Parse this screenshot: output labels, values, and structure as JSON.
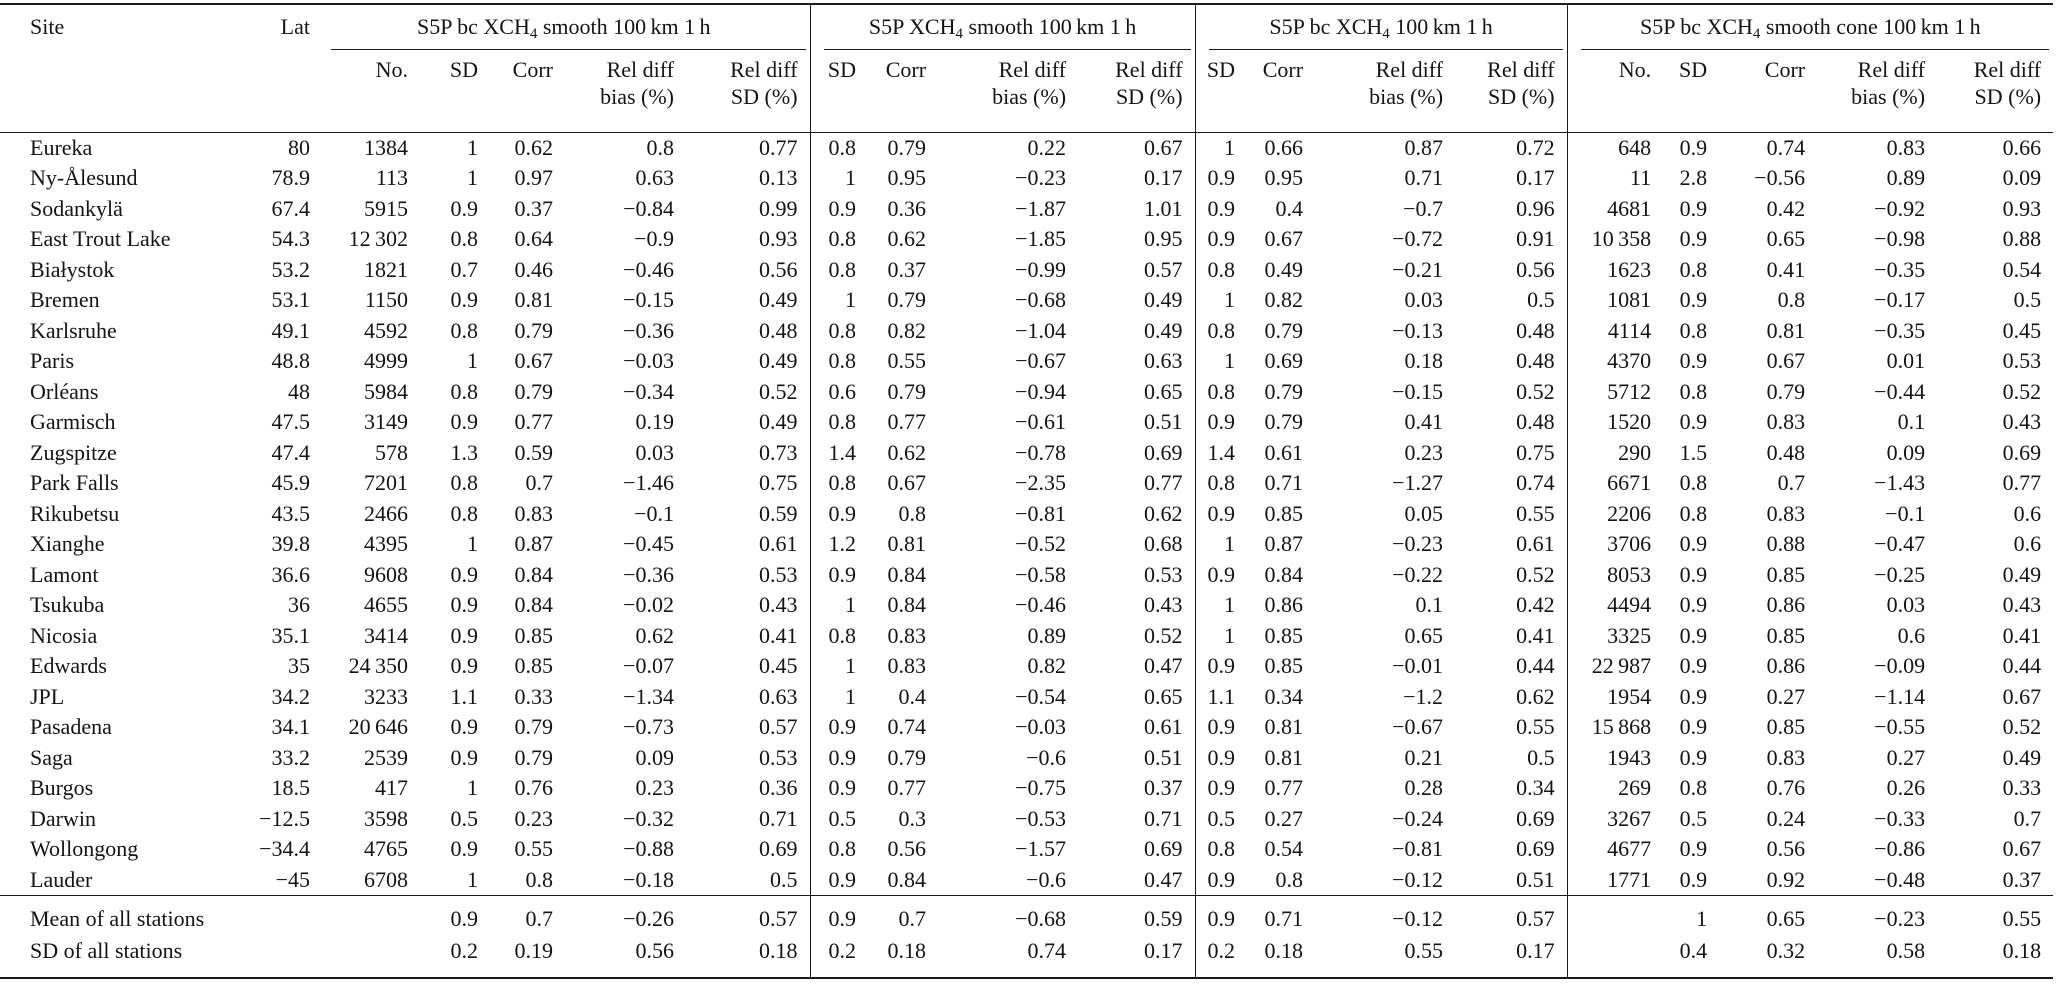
{
  "page": {
    "background_color": "#ffffff",
    "text_color": "#141414",
    "rule_color": "#1a1a1a"
  },
  "table": {
    "site_header": "Site",
    "lat_header": "Lat",
    "groups": [
      {
        "title_pre": "S5P bc XCH",
        "title_sub": "4",
        "title_post": " smooth 100 km 1 h",
        "columns": [
          {
            "key": "no",
            "l1": "No.",
            "l2": ""
          },
          {
            "key": "sd",
            "l1": "SD",
            "l2": ""
          },
          {
            "key": "corr",
            "l1": "Corr",
            "l2": ""
          },
          {
            "key": "rdb",
            "l1": "Rel diff",
            "l2": "bias (%)"
          },
          {
            "key": "rds",
            "l1": "Rel diff",
            "l2": "SD (%)"
          }
        ]
      },
      {
        "title_pre": "S5P XCH",
        "title_sub": "4",
        "title_post": " smooth 100 km 1 h",
        "columns": [
          {
            "key": "sd",
            "l1": "SD",
            "l2": ""
          },
          {
            "key": "corr",
            "l1": "Corr",
            "l2": ""
          },
          {
            "key": "rdb",
            "l1": "Rel diff",
            "l2": "bias (%)"
          },
          {
            "key": "rds",
            "l1": "Rel diff",
            "l2": "SD (%)"
          }
        ]
      },
      {
        "title_pre": "S5P bc XCH",
        "title_sub": "4",
        "title_post": " 100 km 1 h",
        "columns": [
          {
            "key": "sd",
            "l1": "SD",
            "l2": ""
          },
          {
            "key": "corr",
            "l1": "Corr",
            "l2": ""
          },
          {
            "key": "rdb",
            "l1": "Rel diff",
            "l2": "bias (%)"
          },
          {
            "key": "rds",
            "l1": "Rel diff",
            "l2": "SD (%)"
          }
        ]
      },
      {
        "title_pre": "S5P bc XCH",
        "title_sub": "4",
        "title_post": " smooth cone 100 km 1 h",
        "columns": [
          {
            "key": "no",
            "l1": "No.",
            "l2": ""
          },
          {
            "key": "sd",
            "l1": "SD",
            "l2": ""
          },
          {
            "key": "corr",
            "l1": "Corr",
            "l2": ""
          },
          {
            "key": "rdb",
            "l1": "Rel diff",
            "l2": "bias (%)"
          },
          {
            "key": "rds",
            "l1": "Rel diff",
            "l2": "SD (%)"
          }
        ]
      }
    ],
    "rows": [
      {
        "site": "Eureka",
        "lat": "80",
        "g": [
          [
            "1384",
            "1",
            "0.62",
            "0.8",
            "0.77"
          ],
          [
            "0.8",
            "0.79",
            "0.22",
            "0.67"
          ],
          [
            "1",
            "0.66",
            "0.87",
            "0.72"
          ],
          [
            "648",
            "0.9",
            "0.74",
            "0.83",
            "0.66"
          ]
        ]
      },
      {
        "site": "Ny-Ålesund",
        "lat": "78.9",
        "g": [
          [
            "113",
            "1",
            "0.97",
            "0.63",
            "0.13"
          ],
          [
            "1",
            "0.95",
            "−0.23",
            "0.17"
          ],
          [
            "0.9",
            "0.95",
            "0.71",
            "0.17"
          ],
          [
            "11",
            "2.8",
            "−0.56",
            "0.89",
            "0.09"
          ]
        ]
      },
      {
        "site": "Sodankylä",
        "lat": "67.4",
        "g": [
          [
            "5915",
            "0.9",
            "0.37",
            "−0.84",
            "0.99"
          ],
          [
            "0.9",
            "0.36",
            "−1.87",
            "1.01"
          ],
          [
            "0.9",
            "0.4",
            "−0.7",
            "0.96"
          ],
          [
            "4681",
            "0.9",
            "0.42",
            "−0.92",
            "0.93"
          ]
        ]
      },
      {
        "site": "East Trout Lake",
        "lat": "54.3",
        "g": [
          [
            "12 302",
            "0.8",
            "0.64",
            "−0.9",
            "0.93"
          ],
          [
            "0.8",
            "0.62",
            "−1.85",
            "0.95"
          ],
          [
            "0.9",
            "0.67",
            "−0.72",
            "0.91"
          ],
          [
            "10 358",
            "0.9",
            "0.65",
            "−0.98",
            "0.88"
          ]
        ]
      },
      {
        "site": "Białystok",
        "lat": "53.2",
        "g": [
          [
            "1821",
            "0.7",
            "0.46",
            "−0.46",
            "0.56"
          ],
          [
            "0.8",
            "0.37",
            "−0.99",
            "0.57"
          ],
          [
            "0.8",
            "0.49",
            "−0.21",
            "0.56"
          ],
          [
            "1623",
            "0.8",
            "0.41",
            "−0.35",
            "0.54"
          ]
        ]
      },
      {
        "site": "Bremen",
        "lat": "53.1",
        "g": [
          [
            "1150",
            "0.9",
            "0.81",
            "−0.15",
            "0.49"
          ],
          [
            "1",
            "0.79",
            "−0.68",
            "0.49"
          ],
          [
            "1",
            "0.82",
            "0.03",
            "0.5"
          ],
          [
            "1081",
            "0.9",
            "0.8",
            "−0.17",
            "0.5"
          ]
        ]
      },
      {
        "site": "Karlsruhe",
        "lat": "49.1",
        "g": [
          [
            "4592",
            "0.8",
            "0.79",
            "−0.36",
            "0.48"
          ],
          [
            "0.8",
            "0.82",
            "−1.04",
            "0.49"
          ],
          [
            "0.8",
            "0.79",
            "−0.13",
            "0.48"
          ],
          [
            "4114",
            "0.8",
            "0.81",
            "−0.35",
            "0.45"
          ]
        ]
      },
      {
        "site": "Paris",
        "lat": "48.8",
        "g": [
          [
            "4999",
            "1",
            "0.67",
            "−0.03",
            "0.49"
          ],
          [
            "0.8",
            "0.55",
            "−0.67",
            "0.63"
          ],
          [
            "1",
            "0.69",
            "0.18",
            "0.48"
          ],
          [
            "4370",
            "0.9",
            "0.67",
            "0.01",
            "0.53"
          ]
        ]
      },
      {
        "site": "Orléans",
        "lat": "48",
        "g": [
          [
            "5984",
            "0.8",
            "0.79",
            "−0.34",
            "0.52"
          ],
          [
            "0.6",
            "0.79",
            "−0.94",
            "0.65"
          ],
          [
            "0.8",
            "0.79",
            "−0.15",
            "0.52"
          ],
          [
            "5712",
            "0.8",
            "0.79",
            "−0.44",
            "0.52"
          ]
        ]
      },
      {
        "site": "Garmisch",
        "lat": "47.5",
        "g": [
          [
            "3149",
            "0.9",
            "0.77",
            "0.19",
            "0.49"
          ],
          [
            "0.8",
            "0.77",
            "−0.61",
            "0.51"
          ],
          [
            "0.9",
            "0.79",
            "0.41",
            "0.48"
          ],
          [
            "1520",
            "0.9",
            "0.83",
            "0.1",
            "0.43"
          ]
        ]
      },
      {
        "site": "Zugspitze",
        "lat": "47.4",
        "g": [
          [
            "578",
            "1.3",
            "0.59",
            "0.03",
            "0.73"
          ],
          [
            "1.4",
            "0.62",
            "−0.78",
            "0.69"
          ],
          [
            "1.4",
            "0.61",
            "0.23",
            "0.75"
          ],
          [
            "290",
            "1.5",
            "0.48",
            "0.09",
            "0.69"
          ]
        ]
      },
      {
        "site": "Park Falls",
        "lat": "45.9",
        "g": [
          [
            "7201",
            "0.8",
            "0.7",
            "−1.46",
            "0.75"
          ],
          [
            "0.8",
            "0.67",
            "−2.35",
            "0.77"
          ],
          [
            "0.8",
            "0.71",
            "−1.27",
            "0.74"
          ],
          [
            "6671",
            "0.8",
            "0.7",
            "−1.43",
            "0.77"
          ]
        ]
      },
      {
        "site": "Rikubetsu",
        "lat": "43.5",
        "g": [
          [
            "2466",
            "0.8",
            "0.83",
            "−0.1",
            "0.59"
          ],
          [
            "0.9",
            "0.8",
            "−0.81",
            "0.62"
          ],
          [
            "0.9",
            "0.85",
            "0.05",
            "0.55"
          ],
          [
            "2206",
            "0.8",
            "0.83",
            "−0.1",
            "0.6"
          ]
        ]
      },
      {
        "site": "Xianghe",
        "lat": "39.8",
        "g": [
          [
            "4395",
            "1",
            "0.87",
            "−0.45",
            "0.61"
          ],
          [
            "1.2",
            "0.81",
            "−0.52",
            "0.68"
          ],
          [
            "1",
            "0.87",
            "−0.23",
            "0.61"
          ],
          [
            "3706",
            "0.9",
            "0.88",
            "−0.47",
            "0.6"
          ]
        ]
      },
      {
        "site": "Lamont",
        "lat": "36.6",
        "g": [
          [
            "9608",
            "0.9",
            "0.84",
            "−0.36",
            "0.53"
          ],
          [
            "0.9",
            "0.84",
            "−0.58",
            "0.53"
          ],
          [
            "0.9",
            "0.84",
            "−0.22",
            "0.52"
          ],
          [
            "8053",
            "0.9",
            "0.85",
            "−0.25",
            "0.49"
          ]
        ]
      },
      {
        "site": "Tsukuba",
        "lat": "36",
        "g": [
          [
            "4655",
            "0.9",
            "0.84",
            "−0.02",
            "0.43"
          ],
          [
            "1",
            "0.84",
            "−0.46",
            "0.43"
          ],
          [
            "1",
            "0.86",
            "0.1",
            "0.42"
          ],
          [
            "4494",
            "0.9",
            "0.86",
            "0.03",
            "0.43"
          ]
        ]
      },
      {
        "site": "Nicosia",
        "lat": "35.1",
        "g": [
          [
            "3414",
            "0.9",
            "0.85",
            "0.62",
            "0.41"
          ],
          [
            "0.8",
            "0.83",
            "0.89",
            "0.52"
          ],
          [
            "1",
            "0.85",
            "0.65",
            "0.41"
          ],
          [
            "3325",
            "0.9",
            "0.85",
            "0.6",
            "0.41"
          ]
        ]
      },
      {
        "site": "Edwards",
        "lat": "35",
        "g": [
          [
            "24 350",
            "0.9",
            "0.85",
            "−0.07",
            "0.45"
          ],
          [
            "1",
            "0.83",
            "0.82",
            "0.47"
          ],
          [
            "0.9",
            "0.85",
            "−0.01",
            "0.44"
          ],
          [
            "22 987",
            "0.9",
            "0.86",
            "−0.09",
            "0.44"
          ]
        ]
      },
      {
        "site": "JPL",
        "lat": "34.2",
        "g": [
          [
            "3233",
            "1.1",
            "0.33",
            "−1.34",
            "0.63"
          ],
          [
            "1",
            "0.4",
            "−0.54",
            "0.65"
          ],
          [
            "1.1",
            "0.34",
            "−1.2",
            "0.62"
          ],
          [
            "1954",
            "0.9",
            "0.27",
            "−1.14",
            "0.67"
          ]
        ]
      },
      {
        "site": "Pasadena",
        "lat": "34.1",
        "g": [
          [
            "20 646",
            "0.9",
            "0.79",
            "−0.73",
            "0.57"
          ],
          [
            "0.9",
            "0.74",
            "−0.03",
            "0.61"
          ],
          [
            "0.9",
            "0.81",
            "−0.67",
            "0.55"
          ],
          [
            "15 868",
            "0.9",
            "0.85",
            "−0.55",
            "0.52"
          ]
        ]
      },
      {
        "site": "Saga",
        "lat": "33.2",
        "g": [
          [
            "2539",
            "0.9",
            "0.79",
            "0.09",
            "0.53"
          ],
          [
            "0.9",
            "0.79",
            "−0.6",
            "0.51"
          ],
          [
            "0.9",
            "0.81",
            "0.21",
            "0.5"
          ],
          [
            "1943",
            "0.9",
            "0.83",
            "0.27",
            "0.49"
          ]
        ]
      },
      {
        "site": "Burgos",
        "lat": "18.5",
        "g": [
          [
            "417",
            "1",
            "0.76",
            "0.23",
            "0.36"
          ],
          [
            "0.9",
            "0.77",
            "−0.75",
            "0.37"
          ],
          [
            "0.9",
            "0.77",
            "0.28",
            "0.34"
          ],
          [
            "269",
            "0.8",
            "0.76",
            "0.26",
            "0.33"
          ]
        ]
      },
      {
        "site": "Darwin",
        "lat": "−12.5",
        "g": [
          [
            "3598",
            "0.5",
            "0.23",
            "−0.32",
            "0.71"
          ],
          [
            "0.5",
            "0.3",
            "−0.53",
            "0.71"
          ],
          [
            "0.5",
            "0.27",
            "−0.24",
            "0.69"
          ],
          [
            "3267",
            "0.5",
            "0.24",
            "−0.33",
            "0.7"
          ]
        ]
      },
      {
        "site": "Wollongong",
        "lat": "−34.4",
        "g": [
          [
            "4765",
            "0.9",
            "0.55",
            "−0.88",
            "0.69"
          ],
          [
            "0.8",
            "0.56",
            "−1.57",
            "0.69"
          ],
          [
            "0.8",
            "0.54",
            "−0.81",
            "0.69"
          ],
          [
            "4677",
            "0.9",
            "0.56",
            "−0.86",
            "0.67"
          ]
        ]
      },
      {
        "site": "Lauder",
        "lat": "−45",
        "g": [
          [
            "6708",
            "1",
            "0.8",
            "−0.18",
            "0.5"
          ],
          [
            "0.9",
            "0.84",
            "−0.6",
            "0.47"
          ],
          [
            "0.9",
            "0.8",
            "−0.12",
            "0.51"
          ],
          [
            "1771",
            "0.9",
            "0.92",
            "−0.48",
            "0.37"
          ]
        ]
      }
    ],
    "summary_rows": [
      {
        "site": "Mean of all stations",
        "lat": "",
        "g": [
          [
            "",
            "0.9",
            "0.7",
            "−0.26",
            "0.57"
          ],
          [
            "0.9",
            "0.7",
            "−0.68",
            "0.59"
          ],
          [
            "0.9",
            "0.71",
            "−0.12",
            "0.57"
          ],
          [
            "",
            "1",
            "0.65",
            "−0.23",
            "0.55"
          ]
        ]
      },
      {
        "site": "SD of all stations",
        "lat": "",
        "g": [
          [
            "",
            "0.2",
            "0.19",
            "0.56",
            "0.18"
          ],
          [
            "0.2",
            "0.18",
            "0.74",
            "0.17"
          ],
          [
            "0.2",
            "0.18",
            "0.55",
            "0.17"
          ],
          [
            "",
            "0.4",
            "0.32",
            "0.58",
            "0.18"
          ]
        ]
      }
    ]
  }
}
